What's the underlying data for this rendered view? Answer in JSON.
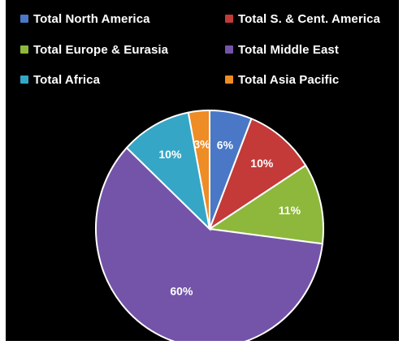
{
  "chart_data": {
    "type": "pie",
    "legend": "top",
    "series": [
      {
        "name": "Total North America",
        "value": 6,
        "label": "6%",
        "color": "#4a78c6"
      },
      {
        "name": "Total S. & Cent. America",
        "value": 10,
        "label": "10%",
        "color": "#c33a39"
      },
      {
        "name": "Total Europe & Eurasia",
        "value": 11,
        "label": "11%",
        "color": "#8db83b"
      },
      {
        "name": "Total Middle East",
        "value": 60,
        "label": "60%",
        "color": "#7454a8"
      },
      {
        "name": "Total Africa",
        "value": 10,
        "label": "10%",
        "color": "#35a6c6"
      },
      {
        "name": "Total Asia Pacific",
        "value": 3,
        "label": "3%",
        "color": "#ee8c25"
      }
    ]
  }
}
